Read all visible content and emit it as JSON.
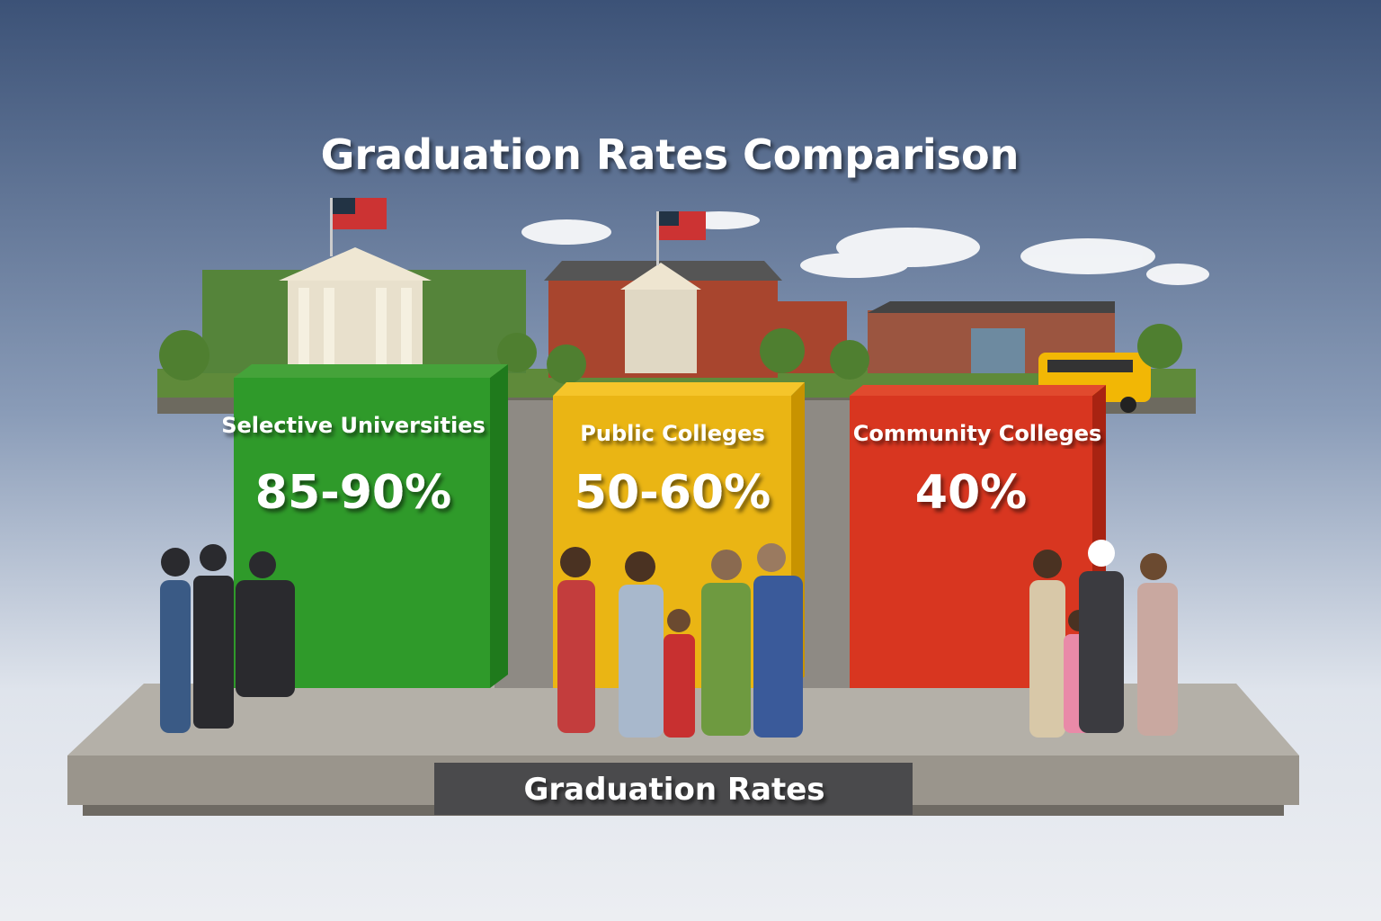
{
  "header": {
    "title": "Graduation Rates Comparison"
  },
  "blocks": [
    {
      "label": "Selective Universities",
      "value": "85-90%"
    },
    {
      "label": "Public Colleges",
      "value": "50-60%"
    },
    {
      "label": "Community Colleges",
      "value": "40%"
    }
  ],
  "base": {
    "label": "Graduation Rates"
  }
}
